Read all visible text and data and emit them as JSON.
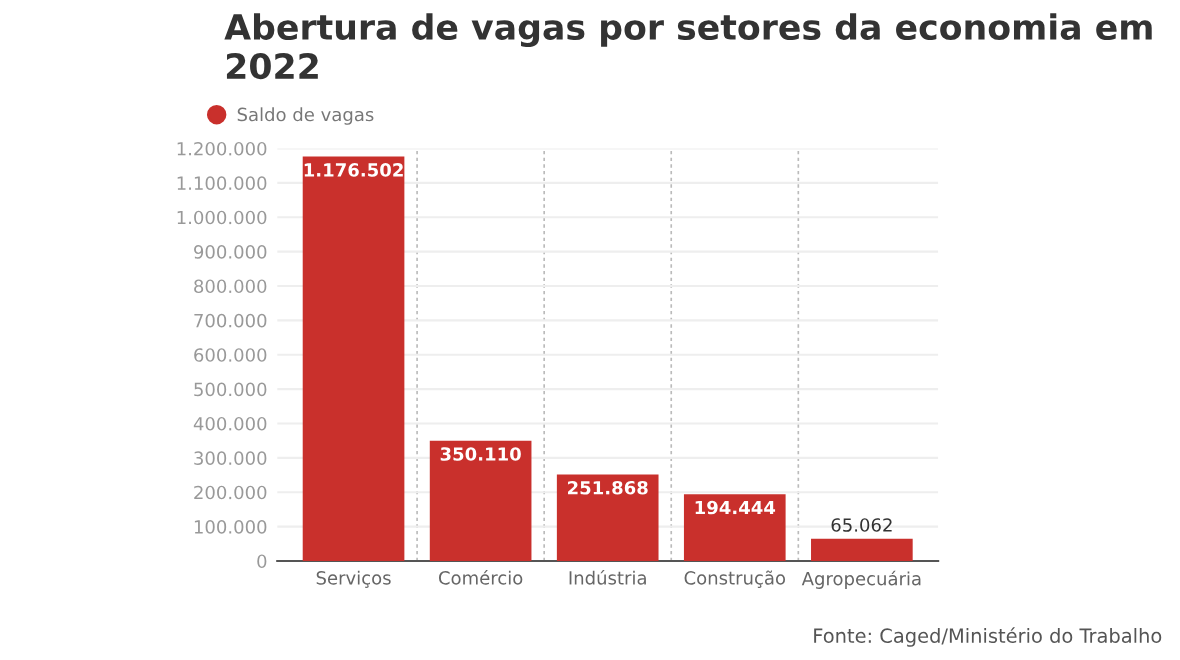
{
  "chart_data": {
    "type": "bar",
    "title": "Abertura de vagas por setores da economia em 2022",
    "categories": [
      "Serviços",
      "Comércio",
      "Indústria",
      "Construção",
      "Agropecuária"
    ],
    "series": [
      {
        "name": "Saldo de vagas",
        "color": "#c9302c",
        "values": [
          1176502,
          350110,
          251868,
          194444,
          65062
        ],
        "value_labels": [
          "1.176.502",
          "350.110",
          "251.868",
          "194.444",
          "65.062"
        ]
      }
    ],
    "ylim": [
      0,
      1200000
    ],
    "yticks": [
      0,
      {
        "value": 100000,
        "label": "100.000"
      },
      {
        "value": 200000,
        "label": "200.000"
      },
      {
        "value": 300000,
        "label": "300.000"
      },
      {
        "value": 400000,
        "label": "400.000"
      },
      {
        "value": 500000,
        "label": "500.000"
      },
      {
        "value": 600000,
        "label": "600.000"
      },
      {
        "value": 700000,
        "label": "700.000"
      },
      {
        "value": 800000,
        "label": "800.000"
      },
      {
        "value": 900000,
        "label": "900.000"
      },
      {
        "value": 1000000,
        "label": "1.000.000"
      },
      {
        "value": 1100000,
        "label": "1.100.000"
      },
      {
        "value": 1200000,
        "label": "1.200.000"
      }
    ],
    "grid": true,
    "legend": "top left",
    "annotations": [
      "Fonte: Caged/Ministério do Trabalho"
    ]
  }
}
